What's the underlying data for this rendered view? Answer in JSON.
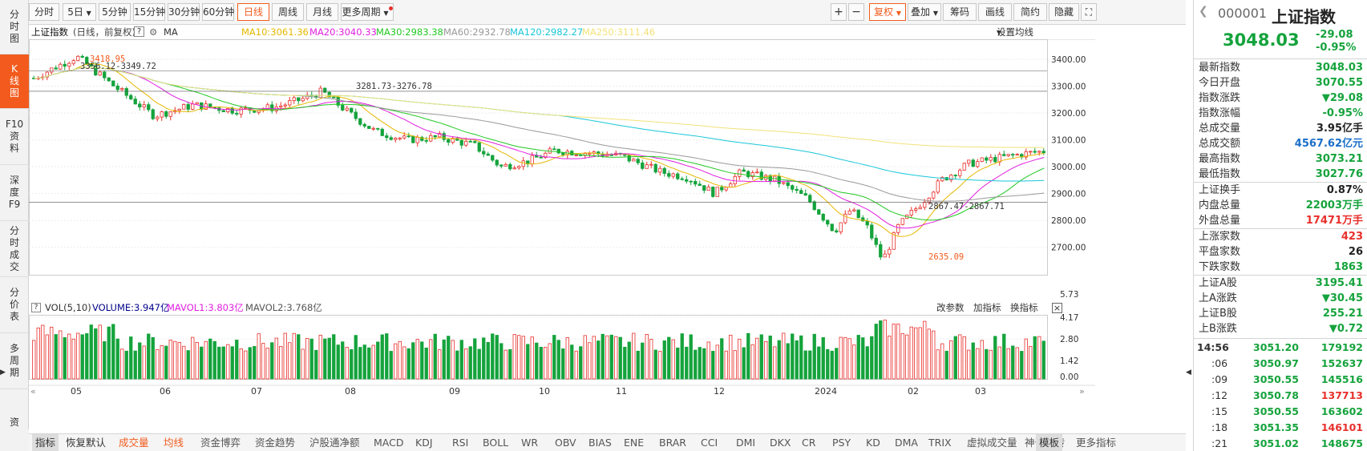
{
  "left_rail": [
    {
      "label": "分时图",
      "active": false
    },
    {
      "label": "K线图",
      "active": true
    },
    {
      "label": "F10资料",
      "active": false
    },
    {
      "label": "深度F9",
      "active": false
    },
    {
      "label": "分时成交",
      "active": false
    },
    {
      "label": "分价表",
      "active": false
    },
    {
      "label": "多周期",
      "active": false
    },
    {
      "label": "资",
      "active": false
    }
  ],
  "period_bar": {
    "periods": [
      "分时",
      "5日",
      "5分钟",
      "15分钟",
      "30分钟",
      "60分钟",
      "日线",
      "周线",
      "月线",
      "更多周期"
    ],
    "active": "日线",
    "right_buttons": [
      "复权",
      "叠加",
      "筹码",
      "画线",
      "简约",
      "隐藏"
    ],
    "zoom_in": "+",
    "zoom_out": "−",
    "expand": "⛶"
  },
  "kline_info": {
    "title": "上证指数",
    "mode": "(日线，前复权)",
    "ma_label": "MA",
    "ma10": "MA10:3061.36",
    "ma20": "MA20:3040.33",
    "ma30": "MA30:2983.38",
    "ma60": "MA60:2932.78",
    "ma120": "MA120:2982.27",
    "ma250": "MA250:3111.46",
    "settings": "设置均线"
  },
  "price_axis": [
    "3400.00",
    "3300.00",
    "3200.00",
    "3100.00",
    "3000.00",
    "2900.00",
    "2800.00",
    "2700.00"
  ],
  "annotations": {
    "high": "3418.95",
    "range1": "3356.12-3349.72",
    "range2": "3281.73-3276.78",
    "range3": "2867.47-2867.71",
    "low": "2635.09"
  },
  "vol_info": {
    "label": "VOL(5,10)",
    "volume": "VOLUME:3.947亿",
    "mavol1": "MAVOL1:3.803亿",
    "mavol2": "MAVOL2:3.768亿",
    "actions": [
      "改参数",
      "加指标",
      "换指标"
    ],
    "close": "×"
  },
  "vol_axis": [
    "5.73",
    "4.17",
    "2.80",
    "1.42",
    "0.00"
  ],
  "months": [
    "05",
    "06",
    "07",
    "08",
    "09",
    "10",
    "11",
    "12",
    "2024",
    "02",
    "03"
  ],
  "indicator_tabs": [
    "指标",
    "恢复默认",
    "成交量",
    "均线",
    "资金博弈",
    "资金趋势",
    "沪股通净额",
    "MACD",
    "KDJ",
    "RSI",
    "BOLL",
    "WR",
    "OBV",
    "BIAS",
    "ENE",
    "BRAR",
    "CCI",
    "DMI",
    "DKX",
    "CR",
    "PSY",
    "KD",
    "DMA",
    "TRIX",
    "虚拟成交量",
    "神奇九转",
    "更多指标",
    "模板"
  ],
  "right_panel": {
    "code": "000001",
    "name": "上证指数",
    "price": "3048.03",
    "change": "-29.08",
    "change_pct": "-0.95%",
    "rows": [
      {
        "label": "最新指数",
        "value": "3048.03",
        "color": "green"
      },
      {
        "label": "今日开盘",
        "value": "3070.55",
        "color": "green"
      },
      {
        "label": "指数涨跌",
        "value": "▼29.08",
        "color": "green"
      },
      {
        "label": "指数涨幅",
        "value": "-0.95%",
        "color": "green"
      },
      {
        "label": "总成交量",
        "value": "3.95亿手",
        "color": "black"
      },
      {
        "label": "总成交额",
        "value": "4567.62亿元",
        "color": "blue"
      },
      {
        "label": "最高指数",
        "value": "3073.21",
        "color": "green"
      },
      {
        "label": "最低指数",
        "value": "3027.76",
        "color": "green"
      },
      {
        "label": "上证换手",
        "value": "0.87%",
        "color": "black"
      },
      {
        "label": "内盘总量",
        "value": "22003万手",
        "color": "green"
      },
      {
        "label": "外盘总量",
        "value": "17471万手",
        "color": "red"
      },
      {
        "label": "上涨家数",
        "value": "423",
        "color": "red"
      },
      {
        "label": "平盘家数",
        "value": "26",
        "color": "black"
      },
      {
        "label": "下跌家数",
        "value": "1863",
        "color": "green"
      },
      {
        "label": "上证A股",
        "value": "3195.41",
        "color": "green"
      },
      {
        "label": "上A涨跌",
        "value": "▼30.45",
        "color": "green"
      },
      {
        "label": "上证B股",
        "value": "255.21",
        "color": "green"
      },
      {
        "label": "上B涨跌",
        "value": "▼0.72",
        "color": "green"
      }
    ],
    "ticks": [
      {
        "time": "14:56",
        "price": "3051.20",
        "vol": "179192",
        "vcolor": "green"
      },
      {
        "time": ":06",
        "price": "3050.97",
        "vol": "152637",
        "vcolor": "green"
      },
      {
        "time": ":09",
        "price": "3050.55",
        "vol": "145516",
        "vcolor": "green"
      },
      {
        "time": ":12",
        "price": "3050.78",
        "vol": "137713",
        "vcolor": "red"
      },
      {
        "time": ":15",
        "price": "3050.55",
        "vol": "163602",
        "vcolor": "green"
      },
      {
        "time": ":18",
        "price": "3051.35",
        "vol": "146101",
        "vcolor": "red"
      },
      {
        "time": ":21",
        "price": "3051.02",
        "vol": "148675",
        "vcolor": "green"
      }
    ]
  },
  "colors": {
    "up": "#e8302c",
    "down": "#15a33c",
    "accent": "#f25b1d",
    "ma10": "#e6b800",
    "ma20": "#e020e0",
    "ma30": "#22c922",
    "ma60": "#999999",
    "ma120": "#19c6d8",
    "ma250": "#f2e27a"
  }
}
